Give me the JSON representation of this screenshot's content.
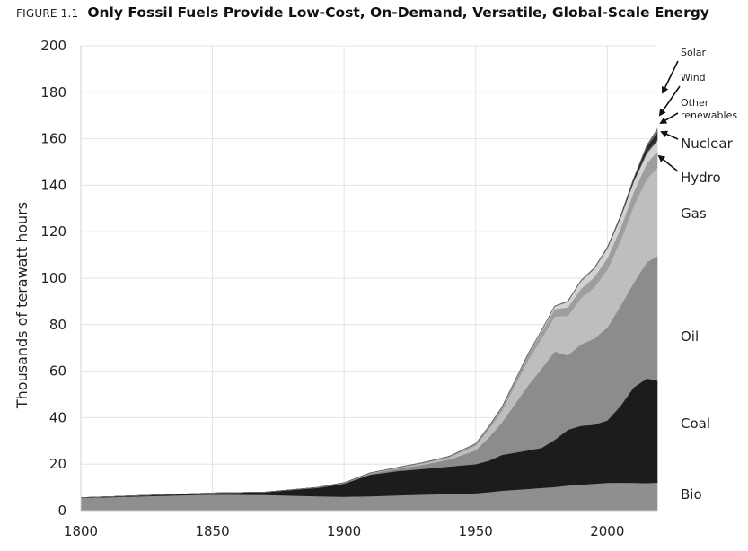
{
  "figure_label": "FIGURE 1.1",
  "chart_data": {
    "type": "area",
    "stacked": true,
    "title": "Only Fossil Fuels Provide Low-Cost, On-Demand, Versatile, Global-Scale Energy",
    "xlabel": "",
    "ylabel": "Thousands of terawatt hours",
    "xlim": [
      1800,
      2019
    ],
    "ylim": [
      0,
      200
    ],
    "xticks": [
      1800,
      1850,
      1900,
      1950,
      2000
    ],
    "yticks": [
      0,
      20,
      40,
      60,
      80,
      100,
      120,
      140,
      160,
      180,
      200
    ],
    "grid": true,
    "legend": "direct labels on right",
    "x": [
      1800,
      1850,
      1870,
      1880,
      1890,
      1900,
      1910,
      1920,
      1930,
      1940,
      1950,
      1955,
      1960,
      1965,
      1970,
      1975,
      1980,
      1985,
      1990,
      1995,
      2000,
      2005,
      2010,
      2015,
      2019
    ],
    "series": [
      {
        "name": "Bio",
        "color": "#8f8f8f",
        "values": [
          5.5,
          7.0,
          6.8,
          6.5,
          6.2,
          6.0,
          6.2,
          6.6,
          6.9,
          7.2,
          7.5,
          8.0,
          8.6,
          9.0,
          9.4,
          9.8,
          10.2,
          10.8,
          11.2,
          11.6,
          12.0,
          12.1,
          12.0,
          11.9,
          12.1
        ]
      },
      {
        "name": "Coal",
        "color": "#1c1c1c",
        "values": [
          0.1,
          0.6,
          1.2,
          2.4,
          3.6,
          5.6,
          9.3,
          10.4,
          11.1,
          11.8,
          12.5,
          13.5,
          15.4,
          16.0,
          16.6,
          17.2,
          20.3,
          24.0,
          25.3,
          25.4,
          26.8,
          33.0,
          41.0,
          45.0,
          43.8
        ]
      },
      {
        "name": "Oil",
        "color": "#8c8c8c",
        "values": [
          0.0,
          0.0,
          0.0,
          0.1,
          0.2,
          0.3,
          0.5,
          1.0,
          1.8,
          3.0,
          6.0,
          10.0,
          14.0,
          21.0,
          28.0,
          34.0,
          38.0,
          32.0,
          35.0,
          37.0,
          40.0,
          43.0,
          45.0,
          50.0,
          53.6
        ]
      },
      {
        "name": "Gas",
        "color": "#bebebe",
        "values": [
          0.0,
          0.0,
          0.0,
          0.0,
          0.0,
          0.1,
          0.2,
          0.3,
          0.6,
          0.9,
          2.0,
          3.5,
          5.0,
          8.0,
          11.0,
          13.0,
          15.0,
          17.0,
          20.0,
          22.0,
          25.0,
          28.0,
          33.0,
          36.0,
          38.0
        ]
      },
      {
        "name": "Hydro",
        "color": "#9e9e9e",
        "values": [
          0.0,
          0.0,
          0.0,
          0.0,
          0.0,
          0.0,
          0.1,
          0.2,
          0.3,
          0.5,
          0.8,
          1.2,
          1.6,
          2.0,
          2.4,
          2.8,
          3.2,
          3.6,
          4.0,
          4.4,
          4.8,
          5.3,
          6.0,
          6.6,
          7.0
        ]
      },
      {
        "name": "Nuclear",
        "color": "#d2d2d2",
        "values": [
          0.0,
          0.0,
          0.0,
          0.0,
          0.0,
          0.0,
          0.0,
          0.0,
          0.0,
          0.0,
          0.0,
          0.0,
          0.0,
          0.1,
          0.2,
          0.6,
          1.2,
          2.5,
          3.3,
          3.6,
          4.2,
          4.6,
          4.4,
          4.3,
          4.5
        ]
      },
      {
        "name": "Other renewables",
        "color": "#5e5e5e",
        "values": [
          0.0,
          0.0,
          0.0,
          0.0,
          0.0,
          0.0,
          0.0,
          0.0,
          0.0,
          0.0,
          0.0,
          0.0,
          0.0,
          0.0,
          0.1,
          0.1,
          0.1,
          0.2,
          0.2,
          0.3,
          0.3,
          0.4,
          0.5,
          0.7,
          0.8
        ]
      },
      {
        "name": "Wind",
        "color": "#2a2a2a",
        "values": [
          0.0,
          0.0,
          0.0,
          0.0,
          0.0,
          0.0,
          0.0,
          0.0,
          0.0,
          0.0,
          0.0,
          0.0,
          0.0,
          0.0,
          0.0,
          0.0,
          0.0,
          0.0,
          0.0,
          0.0,
          0.1,
          0.3,
          0.9,
          2.1,
          3.0
        ]
      },
      {
        "name": "Solar",
        "color": "#707070",
        "values": [
          0.0,
          0.0,
          0.0,
          0.0,
          0.0,
          0.0,
          0.0,
          0.0,
          0.0,
          0.0,
          0.0,
          0.0,
          0.0,
          0.0,
          0.0,
          0.0,
          0.0,
          0.0,
          0.0,
          0.0,
          0.0,
          0.0,
          0.1,
          0.7,
          1.5
        ]
      }
    ],
    "labels": [
      {
        "text": "Solar",
        "size": "small"
      },
      {
        "text": "Wind",
        "size": "small"
      },
      {
        "text": "Other",
        "size": "small"
      },
      {
        "text": "renewables",
        "size": "small"
      },
      {
        "text": "Nuclear",
        "size": "big"
      },
      {
        "text": "Hydro",
        "size": "big"
      },
      {
        "text": "Gas",
        "size": "big"
      },
      {
        "text": "Oil",
        "size": "big"
      },
      {
        "text": "Coal",
        "size": "big"
      },
      {
        "text": "Bio",
        "size": "big"
      }
    ]
  }
}
